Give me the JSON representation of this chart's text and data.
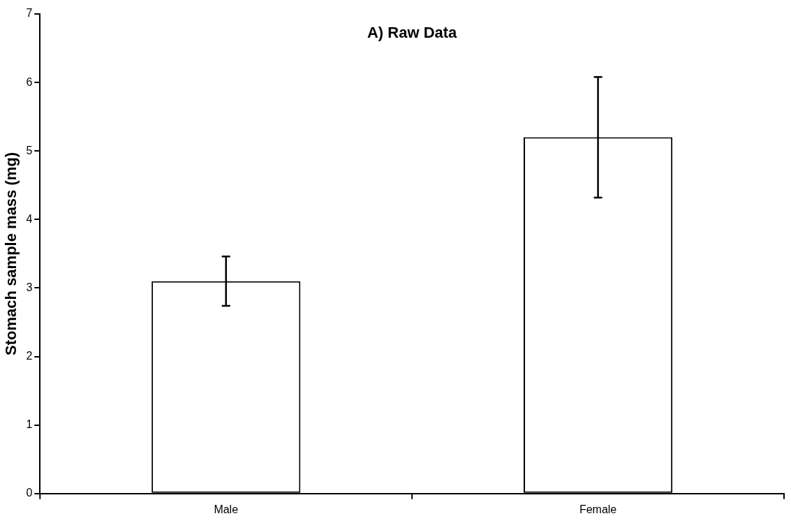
{
  "chart_data": {
    "type": "bar",
    "title": "A) Raw Data",
    "ylabel": "Stomach sample mass (mg)",
    "categories": [
      "Male",
      "Female"
    ],
    "values": [
      3.1,
      5.2
    ],
    "errors": [
      0.36,
      0.88
    ],
    "color": "#ffffff",
    "ylim": [
      0,
      7
    ],
    "yticks": [
      0,
      1,
      2,
      3,
      4,
      5,
      6,
      7
    ],
    "grid": false,
    "legend": false
  }
}
